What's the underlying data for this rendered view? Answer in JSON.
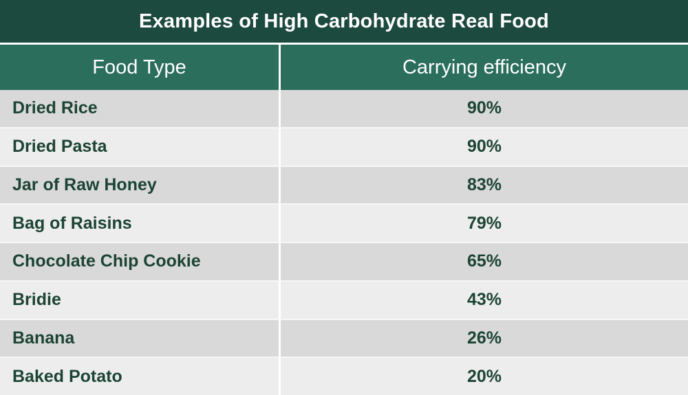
{
  "colors": {
    "title_bg": "#1d4a3e",
    "header_bg": "#2b6e5c",
    "row_dark": "#d9d9d9",
    "row_light": "#ededed",
    "text_green": "#1c4434",
    "header_text": "#ffffff"
  },
  "chart_data": {
    "type": "table",
    "title": "Examples of High Carbohydrate Real Food",
    "columns": [
      "Food Type",
      "Carrying efficiency"
    ],
    "rows": [
      [
        "Dried Rice",
        "90%"
      ],
      [
        "Dried Pasta",
        "90%"
      ],
      [
        "Jar of Raw Honey",
        "83%"
      ],
      [
        "Bag of Raisins",
        "79%"
      ],
      [
        "Chocolate Chip Cookie",
        "65%"
      ],
      [
        "Bridie",
        "43%"
      ],
      [
        "Banana",
        "26%"
      ],
      [
        "Baked Potato",
        "20%"
      ]
    ]
  }
}
